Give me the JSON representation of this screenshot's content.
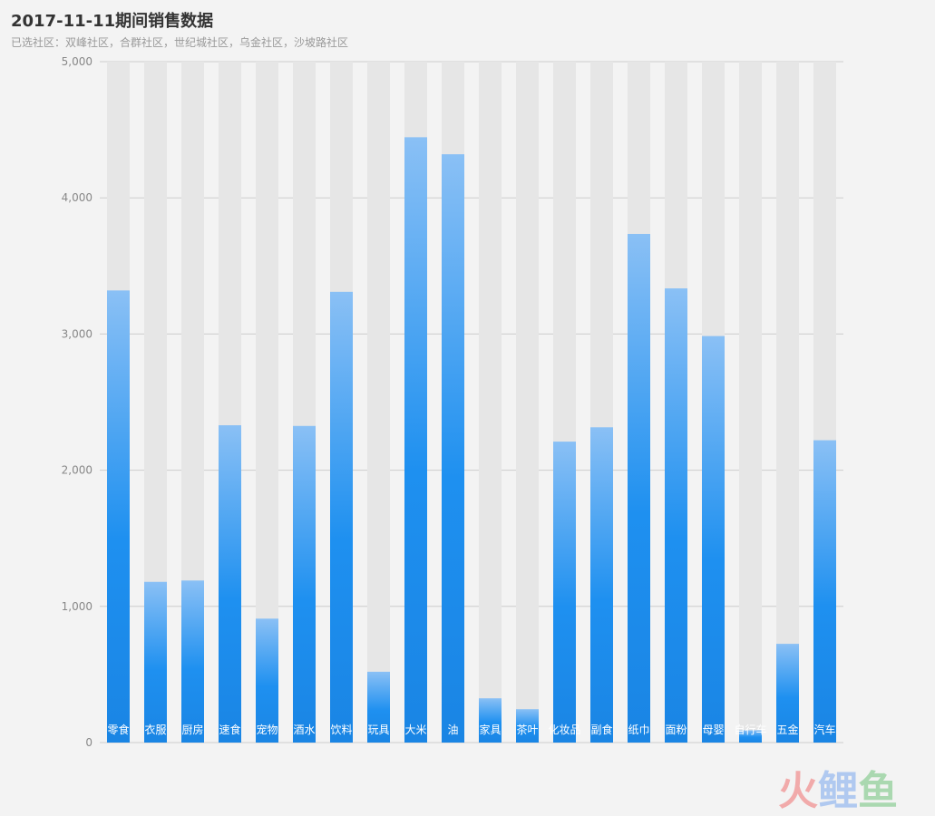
{
  "chart_data": {
    "type": "bar",
    "title": "2017-11-11期间销售数据",
    "subtitle": "已选社区：双峰社区，合群社区，世纪城社区，乌金社区，沙坡路社区",
    "categories": [
      "零食",
      "衣服",
      "厨房",
      "速食",
      "宠物",
      "酒水",
      "饮料",
      "玩具",
      "大米",
      "油",
      "家具",
      "茶叶",
      "化妆品",
      "副食",
      "纸巾",
      "面粉",
      "母婴",
      "自行车",
      "五金",
      "汽车"
    ],
    "values": [
      3320,
      1180,
      1190,
      2330,
      910,
      2325,
      3310,
      520,
      4445,
      4320,
      325,
      245,
      2210,
      2315,
      3735,
      3335,
      2985,
      90,
      725,
      2220
    ],
    "ylim": [
      0,
      5000
    ],
    "yticks": [
      "0",
      "1,000",
      "2,000",
      "3,000",
      "4,000",
      "5,000"
    ],
    "ytick_values": [
      0,
      1000,
      2000,
      3000,
      4000,
      5000
    ],
    "grid": true,
    "background_bars": true,
    "colors": {
      "bar_top": "#8ac0f5",
      "bar_mid": "#1e90f0",
      "bar_bottom": "#1a85e4",
      "background_bar": "#e6e6e6",
      "grid": "#cccccc",
      "page_background": "#f3f3f3"
    }
  },
  "watermark": {
    "text1": "火",
    "text2": "鲤",
    "text3": "鱼"
  }
}
